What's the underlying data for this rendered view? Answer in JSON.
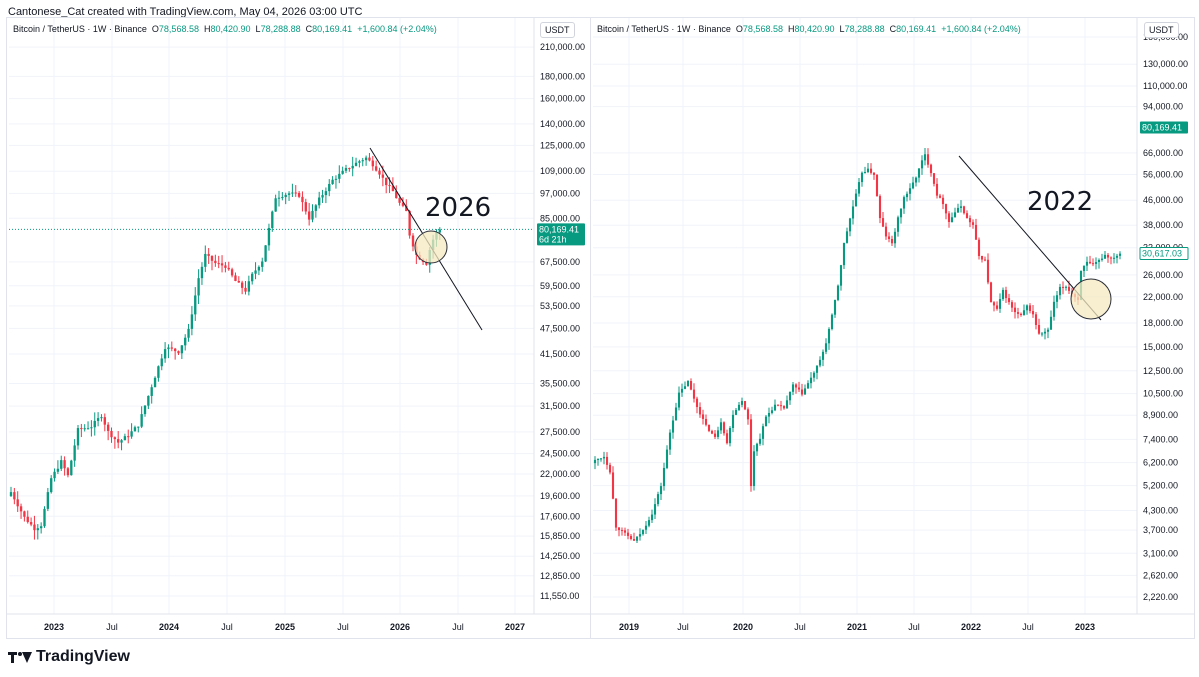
{
  "header": {
    "text": "Cantonese_Cat created with TradingView.com, May 04, 2026 03:00 UTC"
  },
  "footer": {
    "brand": "TradingView"
  },
  "colors": {
    "up": "#089981",
    "down": "#f23645",
    "grid": "#f0f3fa",
    "circle_fill": "#f5e9c0",
    "circle_stroke": "#2a2e39"
  },
  "chart_data": [
    {
      "type": "candlestick",
      "panel": "left",
      "symbol_label": "Bitcoin / TetherUS · 1W · Binance",
      "ohlc": {
        "o_label": "O",
        "o": "78,568.58",
        "h_label": "H",
        "h": "80,420.90",
        "l_label": "L",
        "l": "78,288.88",
        "c_label": "C",
        "c": "80,169.41",
        "change": "+1,600.84 (+2.04%)"
      },
      "currency": "USDT",
      "annotation": "2026",
      "y_scale": "log",
      "ylim": [
        10500,
        245000
      ],
      "y_ticks": [
        "210,000.00",
        "180,000.00",
        "160,000.00",
        "140,000.00",
        "125,000.00",
        "109,000.00",
        "97,000.00",
        "85,000.00",
        "67,500.00",
        "59,500.00",
        "53,500.00",
        "47,500.00",
        "41,500.00",
        "35,500.00",
        "31,500.00",
        "27,500.00",
        "24,500.00",
        "22,000.00",
        "19,600.00",
        "17,600.00",
        "15,850.00",
        "14,250.00",
        "12,850.00",
        "11,550.00"
      ],
      "x_ticks": [
        "2023",
        "Jul",
        "2024",
        "Jul",
        "2025",
        "Jul",
        "2026",
        "Jul",
        "2027"
      ],
      "price_label": "80,169.41",
      "countdown_label": "6d 21h",
      "anchors": [
        [
          0,
          20000
        ],
        [
          4,
          17500
        ],
        [
          7,
          16500
        ],
        [
          9,
          16800
        ],
        [
          12,
          21500
        ],
        [
          15,
          23500
        ],
        [
          17,
          21800
        ],
        [
          20,
          27800
        ],
        [
          24,
          28300
        ],
        [
          27,
          30000
        ],
        [
          29,
          27500
        ],
        [
          32,
          26000
        ],
        [
          35,
          27000
        ],
        [
          38,
          28500
        ],
        [
          42,
          35000
        ],
        [
          46,
          43000
        ],
        [
          50,
          42000
        ],
        [
          53,
          47000
        ],
        [
          56,
          62000
        ],
        [
          58,
          70000
        ],
        [
          61,
          67000
        ],
        [
          64,
          66000
        ],
        [
          67,
          61000
        ],
        [
          70,
          58000
        ],
        [
          72,
          63000
        ],
        [
          75,
          68000
        ],
        [
          79,
          95000
        ],
        [
          83,
          97000
        ],
        [
          86,
          96000
        ],
        [
          89,
          85000
        ],
        [
          92,
          94000
        ],
        [
          96,
          104000
        ],
        [
          100,
          110000
        ],
        [
          104,
          115000
        ],
        [
          106,
          117000
        ],
        [
          108,
          113000
        ],
        [
          110,
          108000
        ],
        [
          112,
          102000
        ],
        [
          114,
          98000
        ],
        [
          116,
          92000
        ],
        [
          118,
          88000
        ],
        [
          119,
          78000
        ],
        [
          121,
          70000
        ],
        [
          123,
          68000
        ],
        [
          124,
          67000
        ],
        [
          125,
          72000
        ],
        [
          126,
          76000
        ],
        [
          127,
          78600
        ],
        [
          128,
          80169
        ]
      ],
      "trendline": {
        "from": [
          "Aug 2025",
          126000
        ],
        "to": [
          "Apr 2026 (projected)",
          48500
        ]
      },
      "circle_at": [
        "Apr 2026",
        80000
      ]
    },
    {
      "type": "candlestick",
      "panel": "right",
      "symbol_label": "Bitcoin / TetherUS · 1W · Binance",
      "ohlc": {
        "o_label": "O",
        "o": "78,568.58",
        "h_label": "H",
        "h": "80,420.90",
        "l_label": "L",
        "l": "78,288.88",
        "c_label": "C",
        "c": "80,169.41",
        "change": "+1,600.84 (+2.04%)"
      },
      "currency": "USDT",
      "annotation": "2022",
      "y_scale": "log",
      "ylim": [
        1950,
        185000
      ],
      "y_ticks": [
        "160,000.00",
        "130,000.00",
        "110,000.00",
        "94,000.00",
        "66,000.00",
        "56,000.00",
        "46,000.00",
        "38,000.00",
        "32,000.00",
        "26,000.00",
        "22,000.00",
        "18,000.00",
        "15,000.00",
        "12,500.00",
        "10,500.00",
        "8,900.00",
        "7,400.00",
        "6,200.00",
        "5,200.00",
        "4,300.00",
        "3,700.00",
        "3,100.00",
        "2,620.00",
        "2,220.00"
      ],
      "x_ticks": [
        "2019",
        "Jul",
        "2020",
        "Jul",
        "2021",
        "Jul",
        "2022",
        "Jul",
        "2023"
      ],
      "price_label": "80,169.41",
      "secondary_price_label": "30,617.03",
      "anchors": [
        [
          0,
          6300
        ],
        [
          3,
          6500
        ],
        [
          5,
          5800
        ],
        [
          7,
          3800
        ],
        [
          10,
          3600
        ],
        [
          13,
          3400
        ],
        [
          16,
          3700
        ],
        [
          19,
          4200
        ],
        [
          22,
          5200
        ],
        [
          25,
          7800
        ],
        [
          28,
          10500
        ],
        [
          31,
          11500
        ],
        [
          34,
          9500
        ],
        [
          37,
          8200
        ],
        [
          40,
          7500
        ],
        [
          42,
          8500
        ],
        [
          44,
          7200
        ],
        [
          46,
          9000
        ],
        [
          49,
          10000
        ],
        [
          51,
          8600
        ],
        [
          52,
          5200
        ],
        [
          53,
          6800
        ],
        [
          55,
          7500
        ],
        [
          57,
          8800
        ],
        [
          60,
          9600
        ],
        [
          63,
          9400
        ],
        [
          66,
          11200
        ],
        [
          69,
          10500
        ],
        [
          72,
          11800
        ],
        [
          75,
          13500
        ],
        [
          77,
          15500
        ],
        [
          79,
          19000
        ],
        [
          81,
          24000
        ],
        [
          83,
          33000
        ],
        [
          85,
          40000
        ],
        [
          87,
          48000
        ],
        [
          89,
          57000
        ],
        [
          91,
          58000
        ],
        [
          93,
          56000
        ],
        [
          95,
          40000
        ],
        [
          97,
          35000
        ],
        [
          99,
          33000
        ],
        [
          101,
          40000
        ],
        [
          103,
          47000
        ],
        [
          105,
          50000
        ],
        [
          107,
          55000
        ],
        [
          109,
          62000
        ],
        [
          110,
          65000
        ],
        [
          112,
          57000
        ],
        [
          114,
          48000
        ],
        [
          116,
          45000
        ],
        [
          118,
          39000
        ],
        [
          120,
          42000
        ],
        [
          122,
          44000
        ],
        [
          124,
          40000
        ],
        [
          126,
          38000
        ],
        [
          128,
          30000
        ],
        [
          130,
          29000
        ],
        [
          132,
          21000
        ],
        [
          134,
          20000
        ],
        [
          136,
          23000
        ],
        [
          138,
          21000
        ],
        [
          140,
          19500
        ],
        [
          142,
          19000
        ],
        [
          144,
          20500
        ],
        [
          146,
          19200
        ],
        [
          148,
          16500
        ],
        [
          150,
          16800
        ],
        [
          151,
          17000
        ],
        [
          153,
          21000
        ],
        [
          155,
          23500
        ],
        [
          157,
          23800
        ],
        [
          159,
          22500
        ],
        [
          161,
          21500
        ],
        [
          162,
          27000
        ],
        [
          164,
          28500
        ],
        [
          166,
          28000
        ],
        [
          168,
          29000
        ],
        [
          170,
          30300
        ],
        [
          172,
          29500
        ],
        [
          174,
          30200
        ],
        [
          175,
          30617
        ]
      ],
      "trendline": {
        "from": [
          "Nov 2021",
          67000
        ],
        "to": [
          "Mar 2023",
          20500
        ]
      },
      "circle_at": [
        "Feb 2023",
        23000
      ]
    }
  ]
}
